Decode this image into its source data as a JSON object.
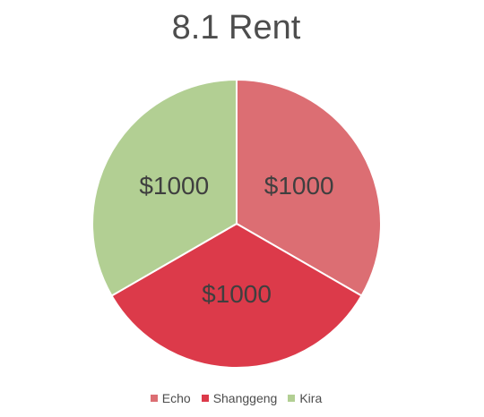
{
  "chart_data": {
    "type": "pie",
    "title": "8.1 Rent",
    "categories": [
      "Echo",
      "Shanggeng",
      "Kira"
    ],
    "values": [
      1000,
      1000,
      1000
    ],
    "data_labels": [
      "$1000",
      "$1000",
      "$1000"
    ],
    "colors": [
      "#dc6e73",
      "#dc3a4a",
      "#b2cf93"
    ],
    "legend_position": "bottom"
  }
}
